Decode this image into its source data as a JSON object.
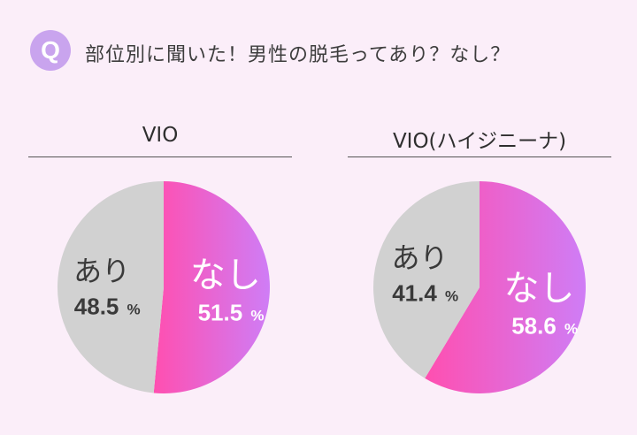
{
  "question": {
    "badge_letter": "Q",
    "text": "部位別に聞いた！男性の脱毛ってあり？なし？"
  },
  "colors": {
    "background": "#fbeef9",
    "badge_purple": "#c9a4ee",
    "ari_gray": "#d1d1d1",
    "nashi_pink_start": "#ff4fb0",
    "nashi_purple_end": "#cf7df6"
  },
  "chart_data": [
    {
      "type": "pie",
      "title": "VIO",
      "slices": [
        {
          "label": "なし",
          "value": 51.5,
          "display": "51.5",
          "unit": "%"
        },
        {
          "label": "あり",
          "value": 48.5,
          "display": "48.5",
          "unit": "%"
        }
      ]
    },
    {
      "type": "pie",
      "title": "VIO(ハイジニーナ)",
      "slices": [
        {
          "label": "なし",
          "value": 58.6,
          "display": "58.6",
          "unit": "%"
        },
        {
          "label": "あり",
          "value": 41.4,
          "display": "41.4",
          "unit": "%"
        }
      ]
    }
  ]
}
